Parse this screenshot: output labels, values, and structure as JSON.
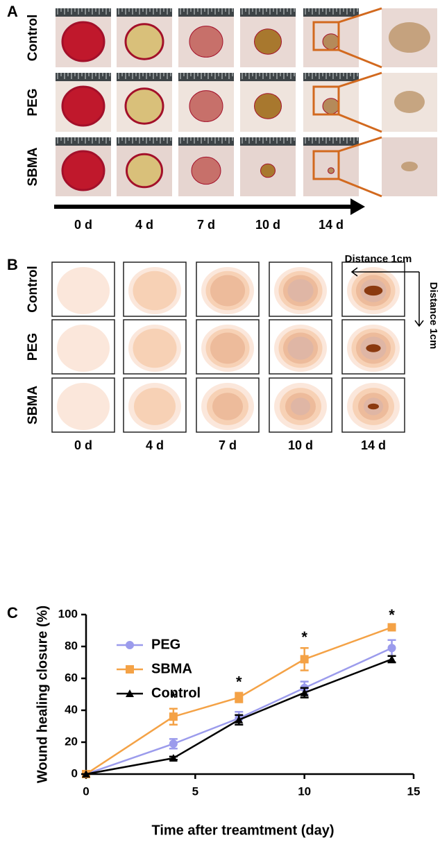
{
  "panel_a": {
    "label": "A",
    "rows": [
      "Control",
      "PEG",
      "SBMA"
    ],
    "columns": [
      "0 d",
      "4 d",
      "7 d",
      "10 d",
      "14 d"
    ]
  },
  "panel_b": {
    "label": "B",
    "rows": [
      "Control",
      "PEG",
      "SBMA"
    ],
    "columns": [
      "0 d",
      "4 d",
      "7 d",
      "10 d",
      "14 d"
    ],
    "scale_x": "Distance 1cm",
    "scale_y": "Distance 1cm"
  },
  "chart_data": {
    "type": "line",
    "panel_label": "C",
    "x_label": "Time after treamtment (day)",
    "y_label": "Wound healing closure (%)",
    "x": [
      0,
      4,
      7,
      10,
      14
    ],
    "series": [
      {
        "name": "PEG",
        "color": "#9b9bec",
        "marker": "circle",
        "values": [
          0,
          19,
          35,
          54,
          79
        ],
        "error": [
          1,
          3,
          4,
          4,
          5
        ]
      },
      {
        "name": "SBMA",
        "color": "#f4a246",
        "marker": "square",
        "values": [
          0,
          36,
          48,
          72,
          92
        ],
        "error": [
          1,
          5,
          3,
          7,
          1
        ]
      },
      {
        "name": "Control",
        "color": "#000000",
        "marker": "triangle",
        "values": [
          0,
          10,
          34,
          51,
          72
        ],
        "error": [
          0,
          1,
          3,
          3,
          2
        ]
      }
    ],
    "annotations": [
      {
        "x": 4,
        "text": "*"
      },
      {
        "x": 7,
        "text": "*"
      },
      {
        "x": 10,
        "text": "*"
      },
      {
        "x": 14,
        "text": "*"
      }
    ],
    "xlim": [
      0,
      15
    ],
    "xticks": [
      0,
      5,
      10,
      15
    ],
    "ylim": [
      0,
      100
    ],
    "yticks": [
      0,
      20,
      40,
      60,
      80,
      100
    ]
  }
}
